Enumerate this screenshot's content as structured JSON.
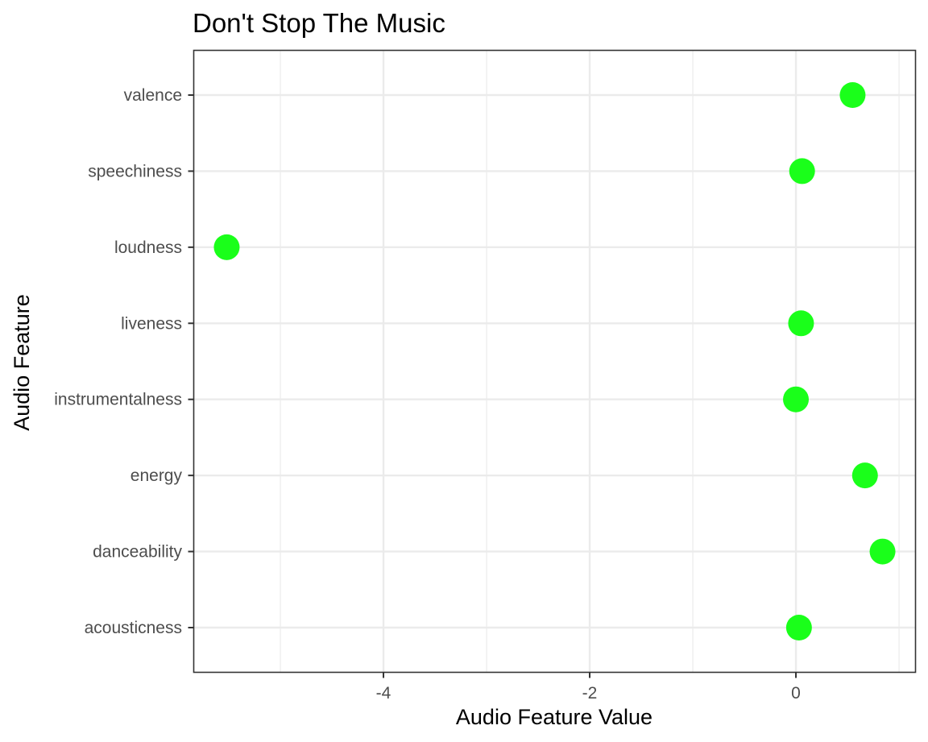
{
  "chart_data": {
    "type": "scatter",
    "title": "Don't Stop The Music",
    "xlabel": "Audio Feature Value",
    "ylabel": "Audio Feature",
    "xlim": [
      -5.84,
      1.16
    ],
    "x_ticks": [
      -4,
      -2,
      0
    ],
    "x_tick_labels": [
      "-4",
      "-2",
      "0"
    ],
    "categories": [
      "acousticness",
      "danceability",
      "energy",
      "instrumentalness",
      "liveness",
      "loudness",
      "speechiness",
      "valence"
    ],
    "values": [
      0.03,
      0.84,
      0.67,
      0.0,
      0.05,
      -5.52,
      0.06,
      0.55
    ],
    "grid": true,
    "point_color": "#1aff1a",
    "legend": "none"
  }
}
